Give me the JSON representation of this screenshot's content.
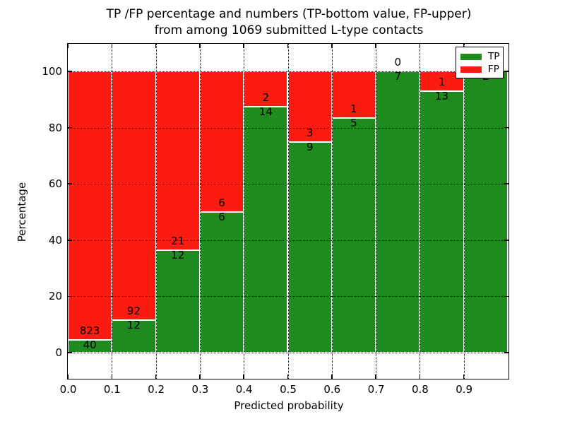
{
  "chart_data": {
    "type": "bar",
    "stacked": true,
    "title_lines": [
      "TP /FP percentage and numbers (TP-bottom value, FP-upper)",
      "from among 1069 submitted L-type contacts"
    ],
    "xlabel": "Predicted probability",
    "ylabel": "Percentage",
    "x_tick_labels": [
      "0.0",
      "0.1",
      "0.2",
      "0.3",
      "0.4",
      "0.5",
      "0.6",
      "0.7",
      "0.8",
      "0.9"
    ],
    "y_tick_labels": [
      "0",
      "20",
      "40",
      "60",
      "80",
      "100"
    ],
    "y_tick_values": [
      0,
      20,
      40,
      60,
      80,
      100
    ],
    "xlim": [
      0.0,
      1.0
    ],
    "ylim": [
      -10,
      110
    ],
    "grid": "dotted black, horizontal and vertical",
    "total_contacts": 1069,
    "bins": [
      {
        "x_start": 0.0,
        "x_end": 0.1,
        "tp_count": 40,
        "fp_count": 823,
        "tp_pct": 4.64
      },
      {
        "x_start": 0.1,
        "x_end": 0.2,
        "tp_count": 12,
        "fp_count": 92,
        "tp_pct": 11.54
      },
      {
        "x_start": 0.2,
        "x_end": 0.3,
        "tp_count": 12,
        "fp_count": 21,
        "tp_pct": 36.36
      },
      {
        "x_start": 0.3,
        "x_end": 0.4,
        "tp_count": 6,
        "fp_count": 6,
        "tp_pct": 50.0
      },
      {
        "x_start": 0.4,
        "x_end": 0.5,
        "tp_count": 14,
        "fp_count": 2,
        "tp_pct": 87.5
      },
      {
        "x_start": 0.5,
        "x_end": 0.6,
        "tp_count": 9,
        "fp_count": 3,
        "tp_pct": 75.0
      },
      {
        "x_start": 0.6,
        "x_end": 0.7,
        "tp_count": 5,
        "fp_count": 1,
        "tp_pct": 83.33
      },
      {
        "x_start": 0.7,
        "x_end": 0.8,
        "tp_count": 7,
        "fp_count": 0,
        "tp_pct": 100.0
      },
      {
        "x_start": 0.8,
        "x_end": 0.9,
        "tp_count": 13,
        "fp_count": 1,
        "tp_pct": 92.86
      },
      {
        "x_start": 0.9,
        "x_end": 1.0,
        "tp_count": 2,
        "fp_count": 0,
        "tp_pct": 100.0
      }
    ],
    "legend": {
      "position": "upper right",
      "entries": [
        {
          "label": "TP",
          "color": "#1f8b1f"
        },
        {
          "label": "FP",
          "color": "#fb1b10"
        }
      ]
    },
    "colors": {
      "tp_green": "#1f8b1f",
      "fp_red": "#fb1b10",
      "grid": "#000000",
      "background": "#ffffff",
      "bar_edge": "#ffffff"
    }
  }
}
